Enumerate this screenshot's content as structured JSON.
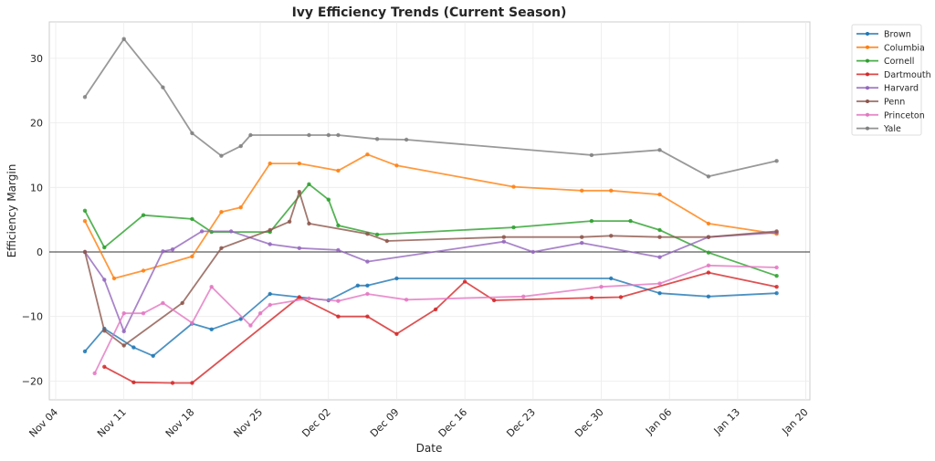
{
  "chart_data": {
    "type": "line",
    "title": "Ivy Efficiency Trends (Current Season)",
    "xlabel": "Date",
    "ylabel": "Efficiency Margin",
    "x_start_date": "Nov 04",
    "xlim_days": [
      0,
      77
    ],
    "ylim": [
      -22.9,
      35.6
    ],
    "x_ticks": [
      {
        "label": "Nov 04",
        "day": 0
      },
      {
        "label": "Nov 11",
        "day": 7
      },
      {
        "label": "Nov 18",
        "day": 14
      },
      {
        "label": "Nov 25",
        "day": 21
      },
      {
        "label": "Dec 02",
        "day": 28
      },
      {
        "label": "Dec 09",
        "day": 35
      },
      {
        "label": "Dec 16",
        "day": 42
      },
      {
        "label": "Dec 23",
        "day": 49
      },
      {
        "label": "Dec 30",
        "day": 56
      },
      {
        "label": "Jan 06",
        "day": 63
      },
      {
        "label": "Jan 13",
        "day": 70
      },
      {
        "label": "Jan 20",
        "day": 77
      }
    ],
    "y_ticks": [
      {
        "label": "30",
        "value": 30
      },
      {
        "label": "20",
        "value": 20
      },
      {
        "label": "10",
        "value": 10
      },
      {
        "label": "0",
        "value": 0
      },
      {
        "label": "−10",
        "value": -10
      },
      {
        "label": "−20",
        "value": -20
      }
    ],
    "grid": true,
    "zero_line": true,
    "legend_position": "outside-top-right",
    "series": [
      {
        "name": "Brown",
        "color": "#1f77b4",
        "days": [
          3,
          5,
          8,
          10,
          14,
          16,
          19,
          22,
          28,
          31,
          32,
          35,
          57,
          62,
          67,
          74
        ],
        "values": [
          -15.4,
          -11.9,
          -14.8,
          -16.1,
          -11.1,
          -12.0,
          -10.4,
          -6.5,
          -7.5,
          -5.2,
          -5.2,
          -4.1,
          -4.1,
          -6.4,
          -6.9,
          -6.4
        ]
      },
      {
        "name": "Columbia",
        "color": "#ff7f0e",
        "days": [
          3,
          6,
          9,
          14,
          17,
          19,
          22,
          25,
          29,
          32,
          35,
          47,
          54,
          57,
          62,
          67,
          74
        ],
        "values": [
          4.8,
          -4.1,
          -2.9,
          -0.7,
          6.2,
          6.9,
          13.7,
          13.7,
          12.6,
          15.1,
          13.4,
          10.1,
          9.5,
          9.5,
          8.9,
          4.4,
          2.8
        ]
      },
      {
        "name": "Cornell",
        "color": "#2ca02c",
        "days": [
          3,
          5,
          9,
          14,
          16,
          22,
          26,
          28,
          29,
          33,
          47,
          55,
          59,
          62,
          67,
          74
        ],
        "values": [
          6.4,
          0.7,
          5.7,
          5.1,
          3.1,
          3.1,
          10.5,
          8.1,
          4.1,
          2.7,
          3.8,
          4.8,
          4.8,
          3.4,
          -0.1,
          -3.7
        ]
      },
      {
        "name": "Dartmouth",
        "color": "#d62728",
        "days": [
          5,
          8,
          12,
          14,
          25,
          29,
          32,
          35,
          39,
          42,
          45,
          55,
          58,
          67,
          74
        ],
        "values": [
          -17.8,
          -20.2,
          -20.3,
          -20.3,
          -7.0,
          -10.0,
          -10.0,
          -12.7,
          -8.9,
          -4.6,
          -7.5,
          -7.1,
          -7.0,
          -3.2,
          -5.4
        ]
      },
      {
        "name": "Harvard",
        "color": "#9467bd",
        "days": [
          3,
          5,
          7,
          11,
          12,
          15,
          18,
          22,
          25,
          29,
          32,
          46,
          49,
          54,
          62,
          67,
          74
        ],
        "values": [
          0.0,
          -4.3,
          -12.3,
          0.1,
          0.4,
          3.2,
          3.2,
          1.2,
          0.6,
          0.3,
          -1.5,
          1.6,
          0.0,
          1.4,
          -0.8,
          2.3,
          3.0
        ]
      },
      {
        "name": "Penn",
        "color": "#8c564b",
        "days": [
          3,
          5,
          7,
          13,
          17,
          22,
          24,
          25,
          26,
          32,
          34,
          46,
          54,
          57,
          62,
          67,
          74
        ],
        "values": [
          0.0,
          -12.2,
          -14.5,
          -7.9,
          0.6,
          3.4,
          4.7,
          9.3,
          4.4,
          2.8,
          1.7,
          2.3,
          2.3,
          2.5,
          2.3,
          2.3,
          3.2
        ]
      },
      {
        "name": "Princeton",
        "color": "#e377c2",
        "days": [
          4,
          7,
          9,
          11,
          14,
          16,
          20,
          21,
          22,
          26,
          29,
          32,
          36,
          48,
          56,
          62,
          67,
          74
        ],
        "values": [
          -18.8,
          -9.5,
          -9.5,
          -7.9,
          -11.0,
          -5.4,
          -11.4,
          -9.5,
          -8.2,
          -7.2,
          -7.6,
          -6.5,
          -7.4,
          -6.9,
          -5.4,
          -4.9,
          -2.1,
          -2.4
        ]
      },
      {
        "name": "Yale",
        "color": "#7f7f7f",
        "days": [
          3,
          7,
          11,
          14,
          17,
          19,
          20,
          26,
          28,
          29,
          33,
          36,
          55,
          62,
          67,
          74
        ],
        "values": [
          24.0,
          33.0,
          25.5,
          18.4,
          14.9,
          16.4,
          18.1,
          18.1,
          18.1,
          18.1,
          17.5,
          17.4,
          15.0,
          15.8,
          11.7,
          14.1
        ]
      }
    ]
  }
}
